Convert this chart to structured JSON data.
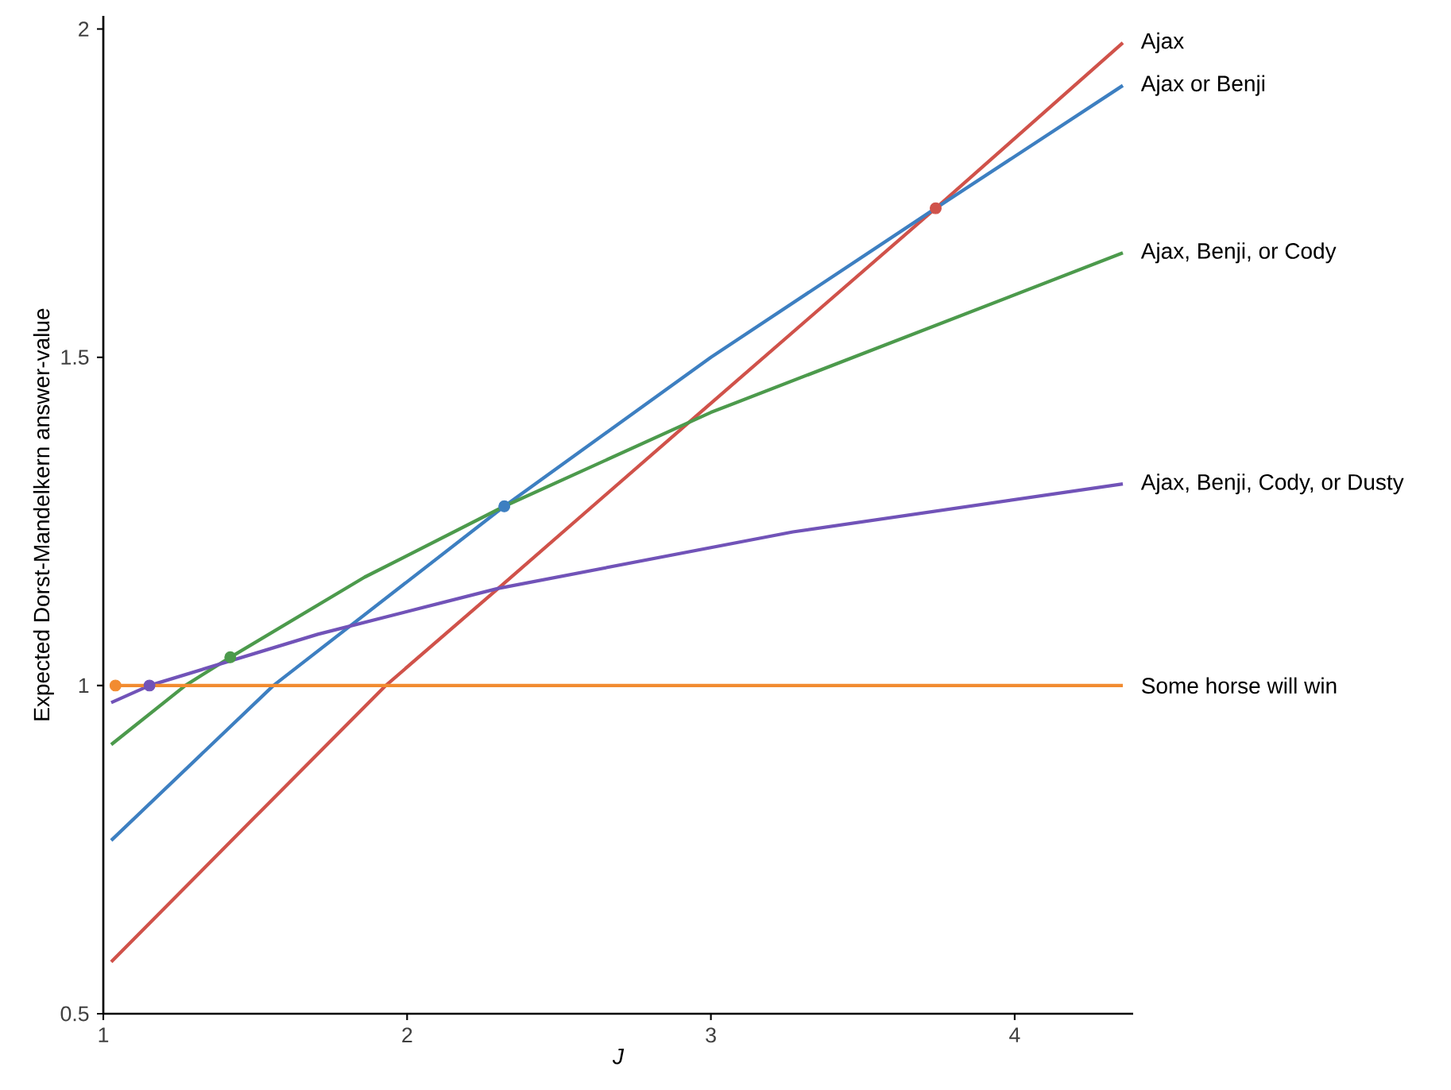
{
  "chart_data": {
    "type": "line",
    "xlabel": "J",
    "ylabel": "Expected Dorst-Mandelkern answer-value",
    "xlim": [
      1,
      4.39
    ],
    "ylim": [
      0.5,
      2.02
    ],
    "xticks": [
      1,
      2,
      3,
      4
    ],
    "yticks": [
      0.5,
      1,
      1.5,
      2
    ],
    "series": [
      {
        "name": "Ajax",
        "color": "#d0524a",
        "x": [
          1.026,
          1.5,
          1.93,
          2.3,
          3.0,
          3.74,
          4.356
        ],
        "values": [
          0.579,
          0.8,
          1.0,
          1.148,
          1.43,
          1.727,
          1.979
        ]
      },
      {
        "name": "Ajax or Benji",
        "color": "#3d7fc1",
        "x": [
          1.026,
          1.56,
          2.32,
          3.0,
          3.74,
          4.356
        ],
        "values": [
          0.764,
          1.0,
          1.273,
          1.5,
          1.727,
          1.914
        ]
      },
      {
        "name": "Ajax, Benji, or Cody",
        "color": "#4c9a4c",
        "x": [
          1.026,
          1.27,
          1.418,
          1.86,
          2.32,
          3.0,
          4.356
        ],
        "values": [
          0.91,
          1.0,
          1.043,
          1.165,
          1.273,
          1.416,
          1.659
        ]
      },
      {
        "name": "Ajax, Benji, Cody, or Dusty",
        "color": "#7153b8",
        "x": [
          1.026,
          1.152,
          1.706,
          2.3,
          3.27,
          4.356
        ],
        "values": [
          0.974,
          1.0,
          1.078,
          1.148,
          1.234,
          1.307
        ]
      },
      {
        "name": "Some horse will win",
        "color": "#f28b30",
        "x": [
          1.04,
          4.356
        ],
        "values": [
          1.0,
          1.0
        ]
      },
      {
        "type": "scatter",
        "marker": "circle",
        "color": "#f28b30",
        "x": [
          1.04
        ],
        "values": [
          1.0
        ]
      },
      {
        "type": "scatter",
        "marker": "circle",
        "color": "#7153b8",
        "x": [
          1.152
        ],
        "values": [
          1.0
        ]
      },
      {
        "type": "scatter",
        "marker": "circle",
        "color": "#4c9a4c",
        "x": [
          1.418
        ],
        "values": [
          1.043
        ]
      },
      {
        "type": "scatter",
        "marker": "circle",
        "color": "#3d7fc1",
        "x": [
          2.32
        ],
        "values": [
          1.273
        ]
      },
      {
        "type": "scatter",
        "marker": "circle",
        "color": "#d0524a",
        "x": [
          3.74
        ],
        "values": [
          1.727
        ]
      }
    ]
  }
}
